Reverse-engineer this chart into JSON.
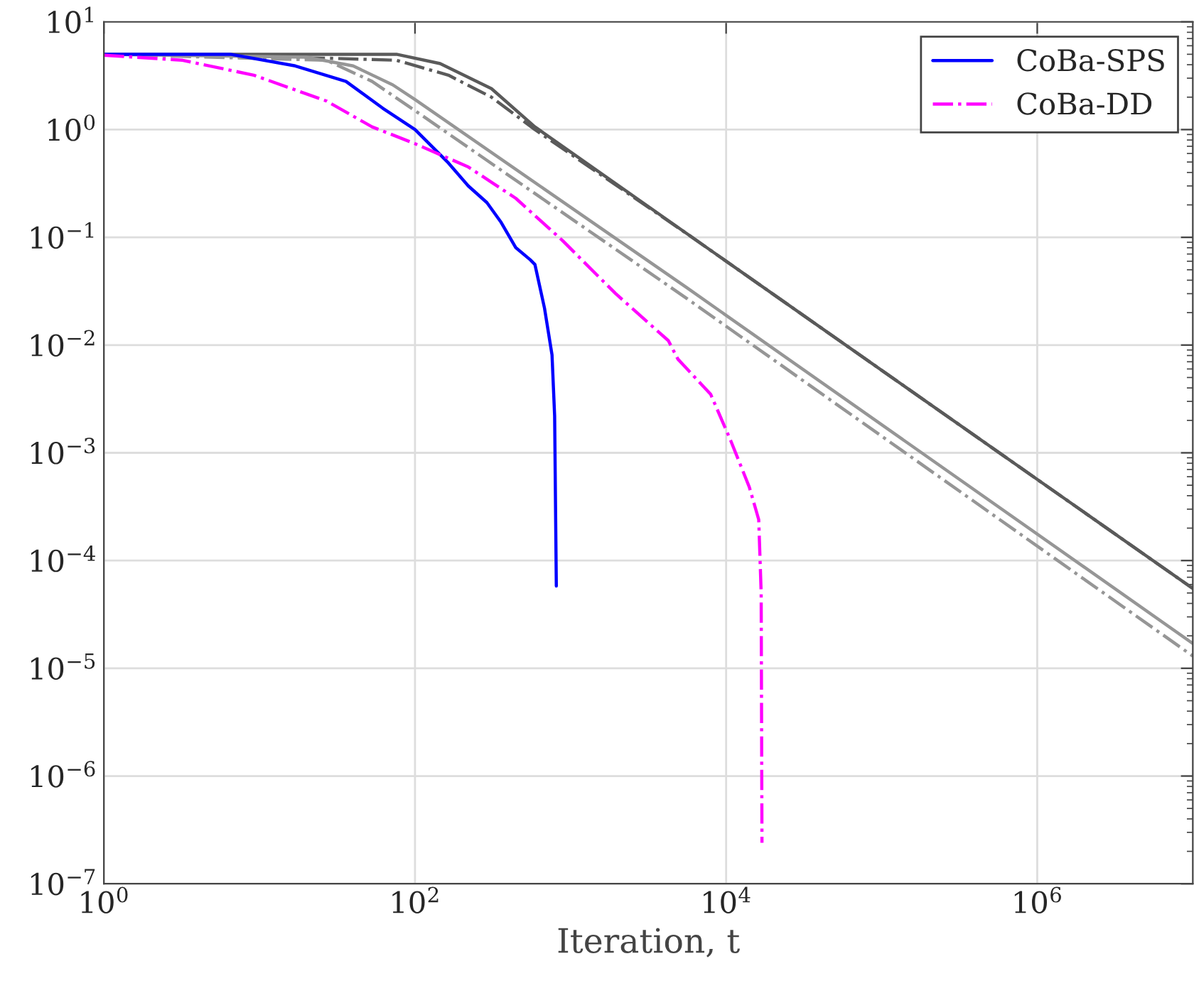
{
  "chart_data": {
    "type": "line",
    "xlabel": "Iteration, t",
    "log": "xy",
    "grid": true,
    "legend": "top right",
    "xlim": [
      1,
      10000000
    ],
    "ylim": [
      1e-07,
      10
    ],
    "xticks": [
      {
        "value": 1,
        "label": "10$^{0}$"
      },
      {
        "value": 100,
        "label": "10$^{2}$"
      },
      {
        "value": 10000,
        "label": "10$^{4}$"
      },
      {
        "value": 1000000,
        "label": "10$^{6}$"
      }
    ],
    "yticks": [
      {
        "value": 1e-07,
        "label": "10$^{−7}$"
      },
      {
        "value": 1e-06,
        "label": "10$^{−6}$"
      },
      {
        "value": 1e-05,
        "label": "10$^{−5}$"
      },
      {
        "value": 0.0001,
        "label": "10$^{−4}$"
      },
      {
        "value": 0.001,
        "label": "10$^{−3}$"
      },
      {
        "value": 0.01,
        "label": "10$^{−2}$"
      },
      {
        "value": 0.1,
        "label": "10$^{−1}$"
      },
      {
        "value": 1,
        "label": "10$^{0}$"
      },
      {
        "value": 10,
        "label": "10$^{1}$"
      }
    ],
    "series": [
      {
        "color": "#5a5a5a",
        "line_style": "solid",
        "x": [
          1,
          76,
          145,
          310,
          590,
          5600,
          10000000
        ],
        "values": [
          5,
          5,
          4.1,
          2.4,
          1.06,
          0.108,
          5.5e-05
        ]
      },
      {
        "color": "#5a5a5a",
        "line_style": "dashdot",
        "x": [
          1,
          27,
          76,
          164,
          310,
          590,
          5600,
          10000000
        ],
        "values": [
          5,
          4.6,
          4.4,
          3.2,
          2.0,
          1.0,
          0.108,
          5.5e-05
        ]
      },
      {
        "color": "#969696",
        "line_style": "solid",
        "x": [
          1,
          20,
          40,
          72,
          100,
          5600,
          10000000
        ],
        "values": [
          5,
          4.7,
          3.9,
          2.6,
          1.9,
          0.034,
          1.7e-05
        ]
      },
      {
        "color": "#969696",
        "line_style": "dashdot",
        "x": [
          1,
          27,
          53,
          100,
          5600,
          10000000
        ],
        "values": [
          5,
          4.4,
          2.8,
          1.5,
          0.027,
          1.3e-05
        ]
      },
      {
        "name": "CoBa-SPS",
        "color": "#0000ff",
        "line_style": "solid",
        "x": [
          1,
          6.5,
          17,
          36,
          62,
          100,
          164,
          220,
          290,
          355,
          445,
          550,
          590,
          680,
          760,
          790,
          810
        ],
        "values": [
          5,
          5,
          3.9,
          2.8,
          1.58,
          1.0,
          0.49,
          0.3,
          0.21,
          0.14,
          0.08,
          0.062,
          0.056,
          0.022,
          0.0081,
          0.0022,
          5.8e-05
        ]
      },
      {
        "name": "CoBa-DD",
        "color": "#ff00ff",
        "line_style": "dashdot",
        "x": [
          1,
          3.2,
          9.2,
          27,
          53,
          100,
          220,
          445,
          890,
          1950,
          4250,
          4900,
          7950,
          10700,
          14100,
          16200,
          16800,
          17000
        ],
        "values": [
          4.9,
          4.4,
          3.2,
          1.84,
          1.06,
          0.74,
          0.45,
          0.23,
          0.093,
          0.03,
          0.011,
          0.0074,
          0.0035,
          0.0013,
          0.00048,
          0.00024,
          5e-05,
          2.4e-07
        ]
      }
    ]
  }
}
